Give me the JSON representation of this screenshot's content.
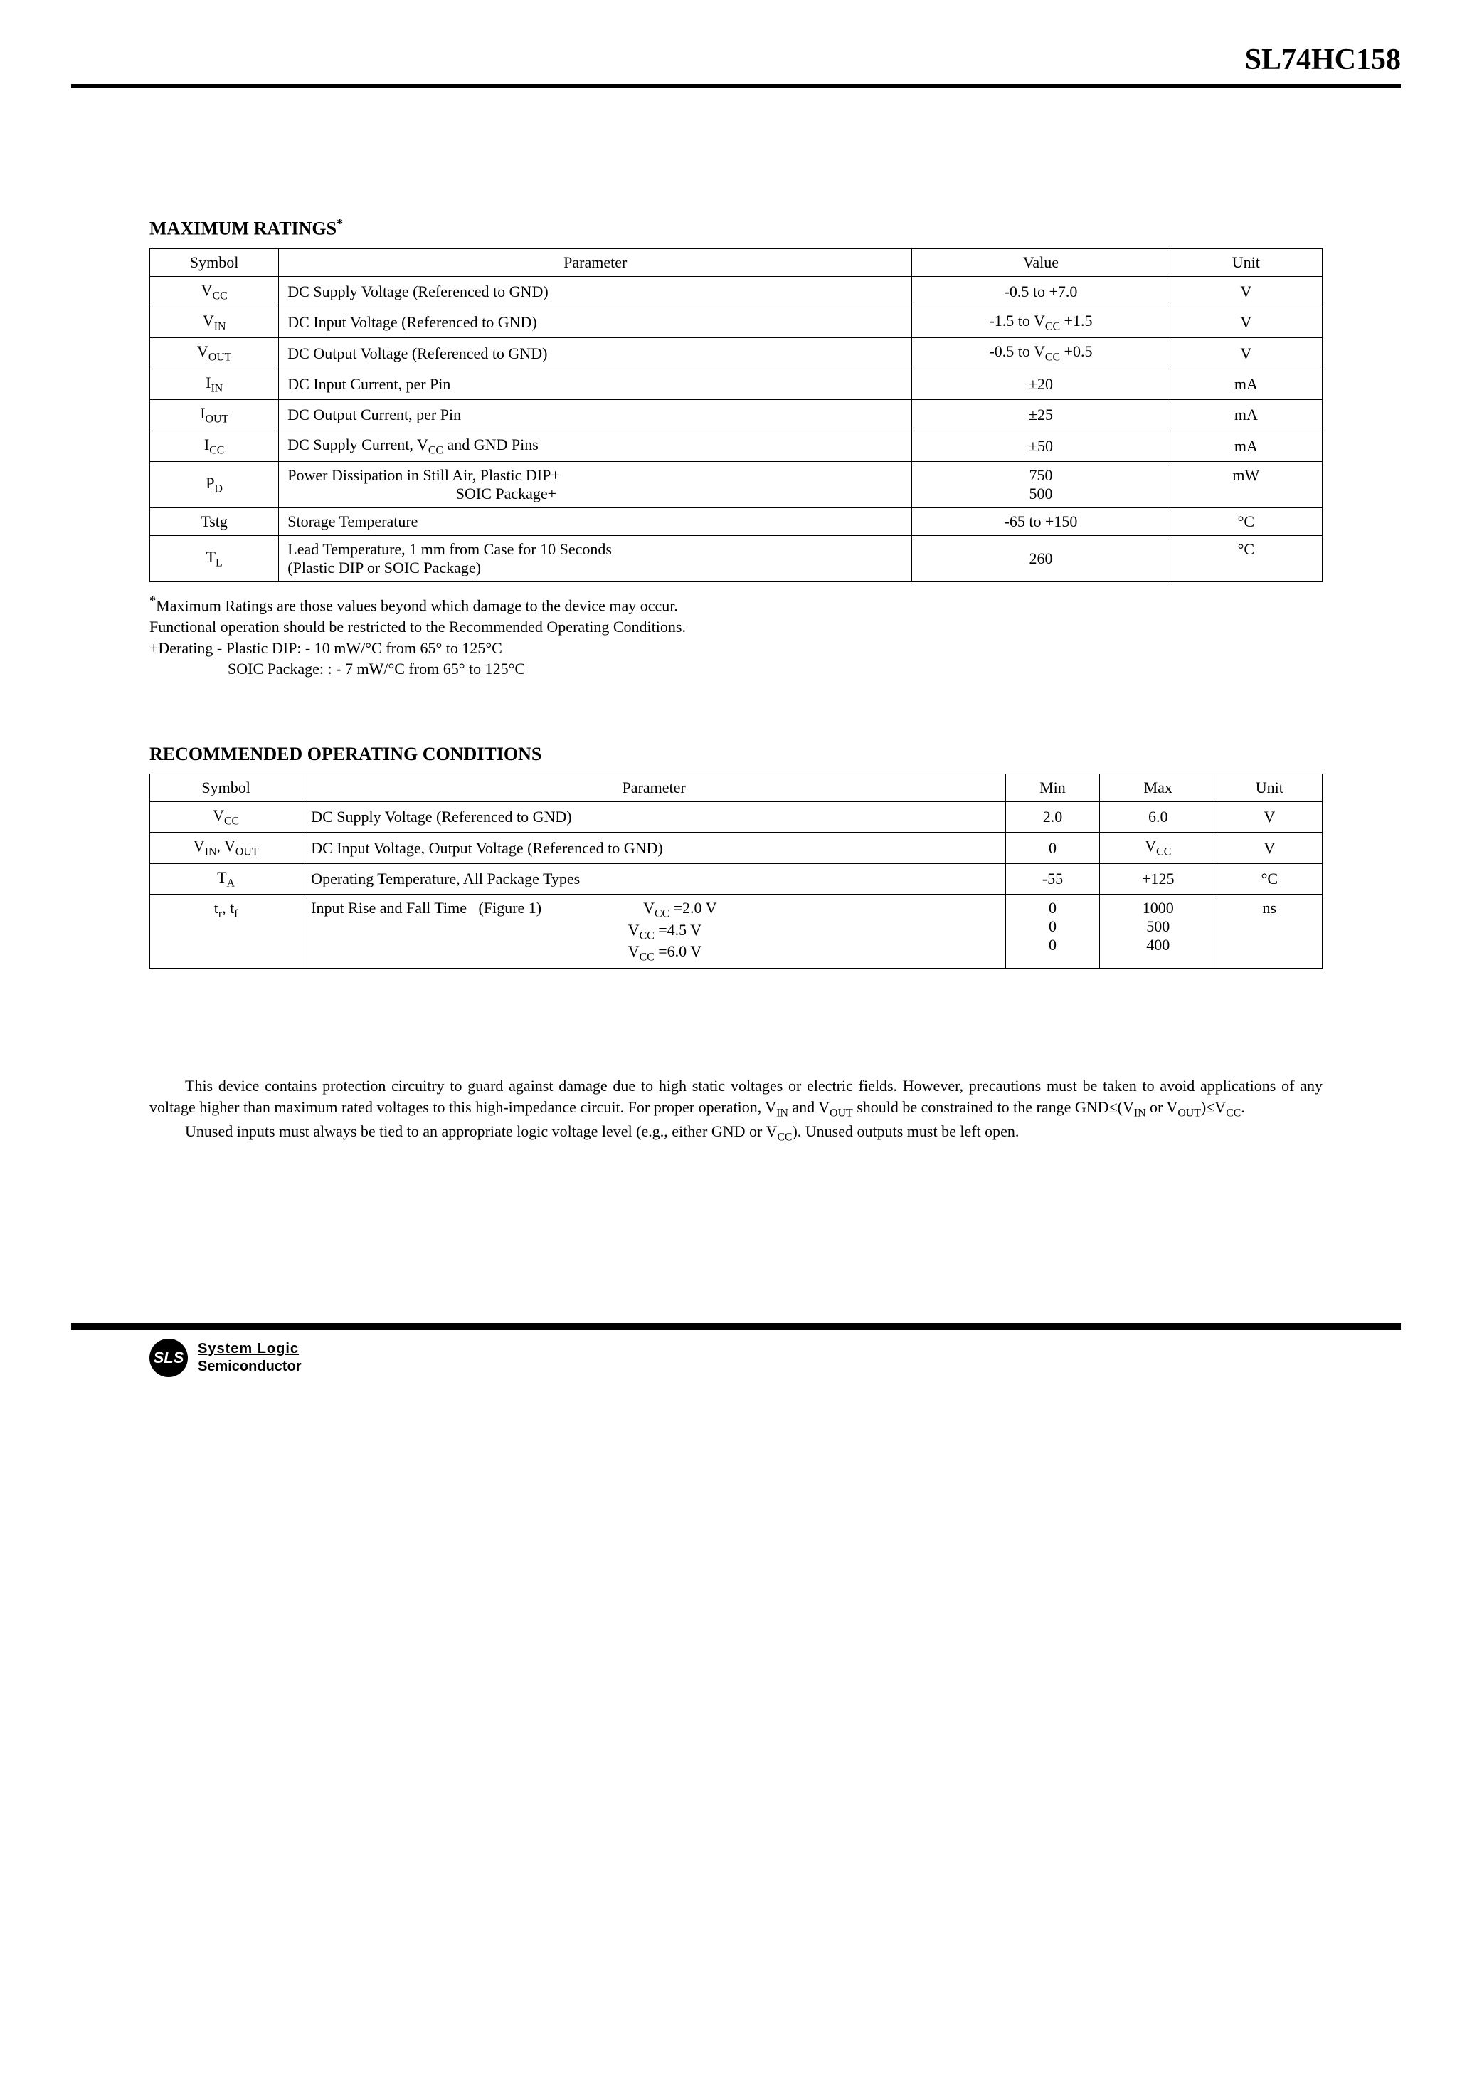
{
  "header": {
    "part_number": "SL74HC158"
  },
  "section1": {
    "title": "MAXIMUM RATINGS",
    "title_super": "*",
    "columns": {
      "symbol": "Symbol",
      "parameter": "Parameter",
      "value": "Value",
      "unit": "Unit"
    },
    "rows": [
      {
        "symbol_html": "V<span class=\"sub\">CC</span>",
        "parameter": "DC Supply Voltage (Referenced to GND)",
        "value": "-0.5 to +7.0",
        "unit": "V"
      },
      {
        "symbol_html": "V<span class=\"sub\">IN</span>",
        "parameter": "DC Input Voltage (Referenced to GND)",
        "value_html": "-1.5 to V<span class=\"sub\">CC</span> +1.5",
        "unit": "V"
      },
      {
        "symbol_html": "V<span class=\"sub\">OUT</span>",
        "parameter": "DC Output Voltage (Referenced to GND)",
        "value_html": "-0.5 to V<span class=\"sub\">CC</span> +0.5",
        "unit": "V"
      },
      {
        "symbol_html": "I<span class=\"sub\">IN</span>",
        "parameter": "DC Input Current, per Pin",
        "value": "±20",
        "unit": "mA"
      },
      {
        "symbol_html": "I<span class=\"sub\">OUT</span>",
        "parameter": "DC Output Current, per Pin",
        "value": "±25",
        "unit": "mA"
      },
      {
        "symbol_html": "I<span class=\"sub\">CC</span>",
        "parameter_html": "DC Supply Current, V<span class=\"sub\">CC</span> and GND Pins",
        "value": "±50",
        "unit": "mA"
      },
      {
        "symbol_html": "P<span class=\"sub\">D</span>",
        "parameter_html": "Power Dissipation in Still Air, Plastic  DIP+<br>&nbsp;&nbsp;&nbsp;&nbsp;&nbsp;&nbsp;&nbsp;&nbsp;&nbsp;&nbsp;&nbsp;&nbsp;&nbsp;&nbsp;&nbsp;&nbsp;&nbsp;&nbsp;&nbsp;&nbsp;&nbsp;&nbsp;&nbsp;&nbsp;&nbsp;&nbsp;&nbsp;&nbsp;&nbsp;&nbsp;&nbsp;&nbsp;&nbsp;&nbsp;&nbsp;&nbsp;&nbsp;&nbsp;&nbsp;&nbsp;&nbsp;&nbsp;&nbsp;SOIC Package+",
        "value_html": "750<br>500",
        "unit": "mW"
      },
      {
        "symbol": "Tstg",
        "parameter": "Storage Temperature",
        "value": "-65 to +150",
        "unit": "°C"
      },
      {
        "symbol_html": "T<span class=\"sub\">L</span>",
        "parameter_html": "Lead Temperature, 1 mm from Case for 10 Seconds<br>(Plastic DIP or SOIC Package)",
        "value": "260",
        "unit": "°C"
      }
    ],
    "notes": [
      "*Maximum Ratings are those values beyond which damage to the device may occur.",
      "Functional operation should be restricted to the Recommended Operating Conditions.",
      "+Derating - Plastic DIP: - 10 mW/°C from 65° to 125°C",
      "SOIC Package: : - 7 mW/°C from 65° to 125°C"
    ]
  },
  "section2": {
    "title": "RECOMMENDED OPERATING CONDITIONS",
    "columns": {
      "symbol": "Symbol",
      "parameter": "Parameter",
      "min": "Min",
      "max": "Max",
      "unit": "Unit"
    },
    "rows": [
      {
        "symbol_html": "V<span class=\"sub\">CC</span>",
        "parameter": "DC Supply Voltage (Referenced to GND)",
        "min": "2.0",
        "max": "6.0",
        "unit": "V"
      },
      {
        "symbol_html": "V<span class=\"sub\">IN</span>, V<span class=\"sub\">OUT</span>",
        "parameter": "DC Input Voltage, Output Voltage (Referenced to GND)",
        "min": "0",
        "max_html": "V<span class=\"sub\">CC</span>",
        "unit": "V"
      },
      {
        "symbol_html": "T<span class=\"sub\">A</span>",
        "parameter": "Operating Temperature, All Package Types",
        "min": "-55",
        "max": "+125",
        "unit": "°C"
      },
      {
        "symbol_html": "t<span class=\"sub\">r</span>, t<span class=\"sub\">f</span>",
        "parameter_html": "Input Rise and Fall Time&nbsp;&nbsp;&nbsp;(Figure 1)&nbsp;&nbsp;&nbsp;&nbsp;&nbsp;&nbsp;&nbsp;&nbsp;&nbsp;&nbsp;&nbsp;&nbsp;&nbsp;&nbsp;&nbsp;&nbsp;&nbsp;&nbsp;&nbsp;&nbsp;&nbsp;&nbsp;&nbsp;&nbsp;&nbsp;&nbsp;V<span class=\"sub\">CC</span> =2.0 V<br>&nbsp;&nbsp;&nbsp;&nbsp;&nbsp;&nbsp;&nbsp;&nbsp;&nbsp;&nbsp;&nbsp;&nbsp;&nbsp;&nbsp;&nbsp;&nbsp;&nbsp;&nbsp;&nbsp;&nbsp;&nbsp;&nbsp;&nbsp;&nbsp;&nbsp;&nbsp;&nbsp;&nbsp;&nbsp;&nbsp;&nbsp;&nbsp;&nbsp;&nbsp;&nbsp;&nbsp;&nbsp;&nbsp;&nbsp;&nbsp;&nbsp;&nbsp;&nbsp;&nbsp;&nbsp;&nbsp;&nbsp;&nbsp;&nbsp;&nbsp;&nbsp;&nbsp;&nbsp;&nbsp;&nbsp;&nbsp;&nbsp;&nbsp;&nbsp;&nbsp;&nbsp;&nbsp;&nbsp;&nbsp;&nbsp;&nbsp;&nbsp;&nbsp;&nbsp;&nbsp;&nbsp;&nbsp;&nbsp;&nbsp;&nbsp;&nbsp;&nbsp;&nbsp;&nbsp;&nbsp;&nbsp;V<span class=\"sub\">CC</span> =4.5 V<br>&nbsp;&nbsp;&nbsp;&nbsp;&nbsp;&nbsp;&nbsp;&nbsp;&nbsp;&nbsp;&nbsp;&nbsp;&nbsp;&nbsp;&nbsp;&nbsp;&nbsp;&nbsp;&nbsp;&nbsp;&nbsp;&nbsp;&nbsp;&nbsp;&nbsp;&nbsp;&nbsp;&nbsp;&nbsp;&nbsp;&nbsp;&nbsp;&nbsp;&nbsp;&nbsp;&nbsp;&nbsp;&nbsp;&nbsp;&nbsp;&nbsp;&nbsp;&nbsp;&nbsp;&nbsp;&nbsp;&nbsp;&nbsp;&nbsp;&nbsp;&nbsp;&nbsp;&nbsp;&nbsp;&nbsp;&nbsp;&nbsp;&nbsp;&nbsp;&nbsp;&nbsp;&nbsp;&nbsp;&nbsp;&nbsp;&nbsp;&nbsp;&nbsp;&nbsp;&nbsp;&nbsp;&nbsp;&nbsp;&nbsp;&nbsp;&nbsp;&nbsp;&nbsp;&nbsp;&nbsp;&nbsp;V<span class=\"sub\">CC</span> =6.0 V",
        "min_html": "0<br>0<br>0",
        "max_html": "1000<br>500<br>400",
        "unit": "ns"
      }
    ]
  },
  "body_paragraphs": [
    "This device contains protection circuitry to guard against damage due to high static  voltages or electric fields. However, precautions must be taken to avoid applications of any voltage higher than maximum rated voltages to this high-impedance circuit. For proper operation, V<span class=\"sub\">IN</span> and V<span class=\"sub\">OUT</span> should be constrained to the range GND≤(V<span class=\"sub\">IN</span> or V<span class=\"sub\">OUT</span>)≤V<span class=\"sub\">CC</span>.",
    "Unused inputs must always be tied to an appropriate logic voltage level (e.g., either GND or V<span class=\"sub\">CC</span>). Unused outputs must be left open."
  ],
  "footer": {
    "badge": "SLS",
    "line1": "System Logic",
    "line2": "Semiconductor"
  },
  "widths": {
    "t1_symbol_pct": 11,
    "t1_param_pct": 54,
    "t1_value_pct": 22,
    "t1_unit_pct": 13,
    "t2_symbol_pct": 13,
    "t2_param_pct": 60,
    "t2_min_pct": 8,
    "t2_max_pct": 10,
    "t2_unit_pct": 9
  }
}
